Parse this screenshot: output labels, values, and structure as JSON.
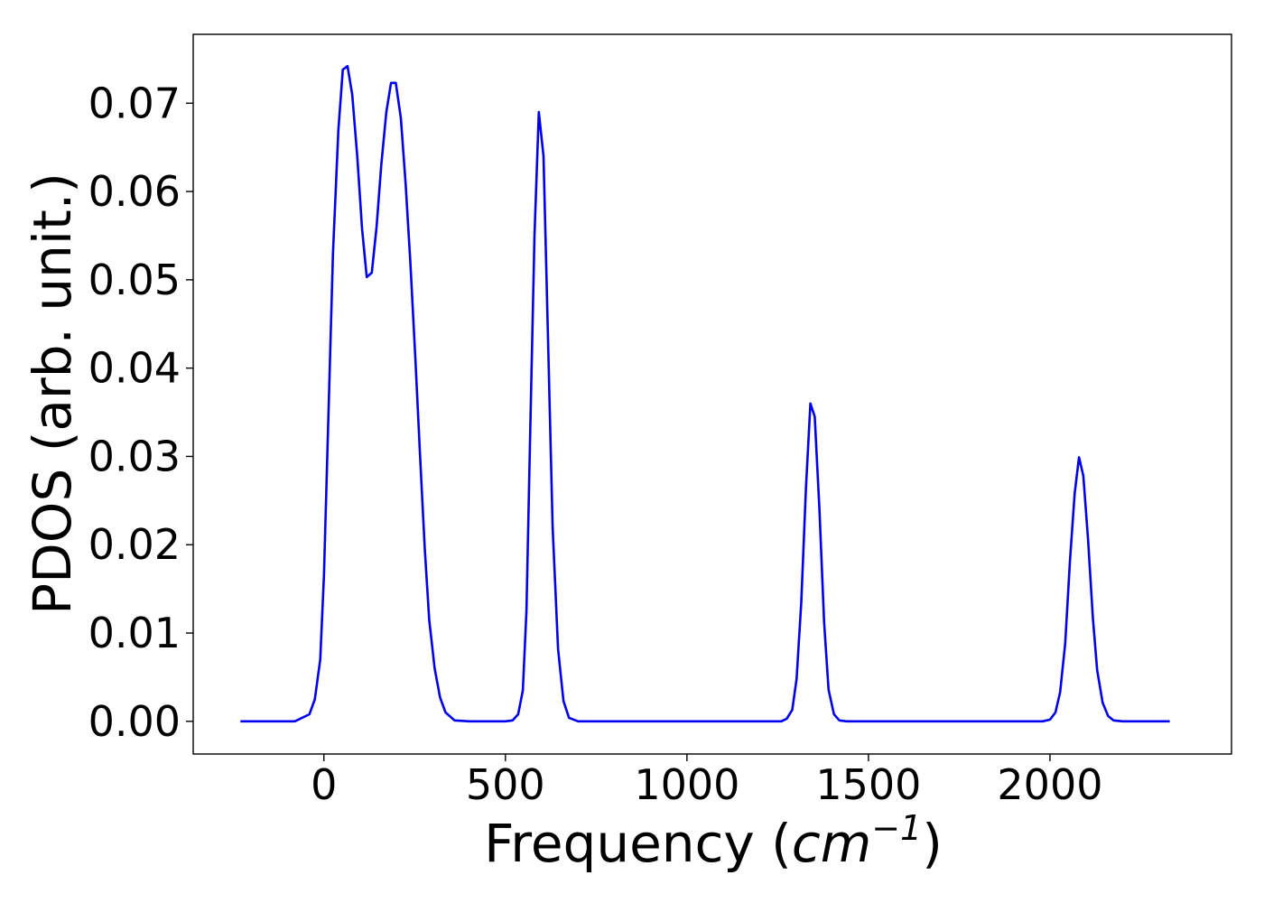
{
  "chart_data": {
    "type": "line",
    "xlabel_prefix": "Frequency (",
    "xlabel_unit": "cm",
    "xlabel_exp": "−1",
    "xlabel_suffix": ")",
    "ylabel": "PDOS (arb. unit.)",
    "xlim": [
      -360,
      2500
    ],
    "ylim": [
      -0.0037,
      0.0778
    ],
    "xticks": [
      0,
      500,
      1000,
      1500,
      2000
    ],
    "xtick_labels": [
      "0",
      "500",
      "1000",
      "1500",
      "2000"
    ],
    "yticks": [
      0.0,
      0.01,
      0.02,
      0.03,
      0.04,
      0.05,
      0.06,
      0.07
    ],
    "ytick_labels": [
      "0.00",
      "0.01",
      "0.02",
      "0.03",
      "0.04",
      "0.05",
      "0.06",
      "0.07"
    ],
    "grid": false,
    "series": [
      {
        "color": "#0000ee",
        "x": [
          -230,
          -80,
          -40,
          -25,
          -10,
          0,
          12,
          25,
          40,
          52,
          65,
          78,
          92,
          105,
          118,
          132,
          145,
          158,
          172,
          185,
          198,
          212,
          225,
          238,
          252,
          265,
          278,
          290,
          305,
          320,
          335,
          360,
          400,
          500,
          520,
          535,
          548,
          558,
          568,
          580,
          592,
          605,
          618,
          630,
          645,
          660,
          675,
          700,
          800,
          1000,
          1200,
          1260,
          1275,
          1290,
          1302,
          1315,
          1328,
          1340,
          1352,
          1365,
          1378,
          1390,
          1405,
          1420,
          1440,
          1600,
          1800,
          1980,
          2000,
          2015,
          2028,
          2042,
          2055,
          2068,
          2080,
          2092,
          2105,
          2118,
          2130,
          2145,
          2160,
          2175,
          2200,
          2330
        ],
        "y": [
          0.0,
          0.0,
          0.0008,
          0.0025,
          0.007,
          0.0165,
          0.034,
          0.053,
          0.067,
          0.0738,
          0.0742,
          0.071,
          0.064,
          0.0558,
          0.0503,
          0.0508,
          0.056,
          0.063,
          0.069,
          0.0723,
          0.0723,
          0.0683,
          0.061,
          0.052,
          0.041,
          0.03,
          0.0195,
          0.0115,
          0.006,
          0.0027,
          0.001,
          0.0001,
          0.0,
          0.0,
          0.0001,
          0.0008,
          0.0035,
          0.0125,
          0.032,
          0.055,
          0.069,
          0.064,
          0.042,
          0.022,
          0.0082,
          0.0023,
          0.0004,
          0.0,
          0.0,
          0.0,
          0.0,
          0.0,
          0.0003,
          0.0013,
          0.0048,
          0.0135,
          0.0265,
          0.036,
          0.0345,
          0.024,
          0.0112,
          0.0036,
          0.0008,
          0.0001,
          0.0,
          0.0,
          0.0,
          0.0,
          0.0002,
          0.001,
          0.0033,
          0.0088,
          0.0182,
          0.0258,
          0.0299,
          0.0278,
          0.0205,
          0.0118,
          0.0058,
          0.0021,
          0.0006,
          0.0001,
          0.0,
          0.0
        ]
      }
    ]
  }
}
